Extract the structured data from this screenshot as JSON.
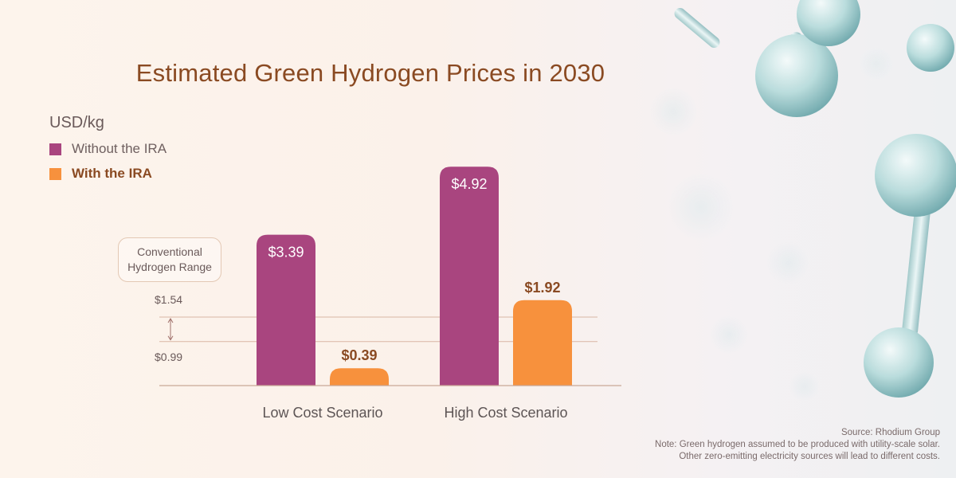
{
  "chart_data": {
    "type": "bar",
    "title": "Estimated Green Hydrogen Prices in 2030",
    "ylabel": "USD/kg",
    "xlabel": "",
    "categories": [
      "Low Cost Scenario",
      "High Cost Scenario"
    ],
    "series": [
      {
        "name": "Without the IRA",
        "values": [
          3.39,
          4.92
        ],
        "labels": [
          "$3.39",
          "$4.92"
        ],
        "color": "#a9457f"
      },
      {
        "name": "With the IRA",
        "values": [
          0.39,
          1.92
        ],
        "labels": [
          "$0.39",
          "$1.92"
        ],
        "color": "#f7913d"
      }
    ],
    "ylim": [
      0,
      5.3
    ],
    "legend_position": "top-left",
    "reference_band": {
      "label": "Conventional Hydrogen Range",
      "low": 0.99,
      "high": 1.54,
      "low_label": "$0.99",
      "high_label": "$1.54",
      "color": "#d9b6a4"
    }
  },
  "footer": {
    "source": "Source: Rhodium Group",
    "note_line1": "Note: Green hydrogen assumed to be produced with utility-scale solar.",
    "note_line2": "Other zero-emitting electricity sources will lead to different costs."
  },
  "colors": {
    "title": "#8a4a22",
    "axis": "#c9a896",
    "category_label": "#5d5555"
  }
}
